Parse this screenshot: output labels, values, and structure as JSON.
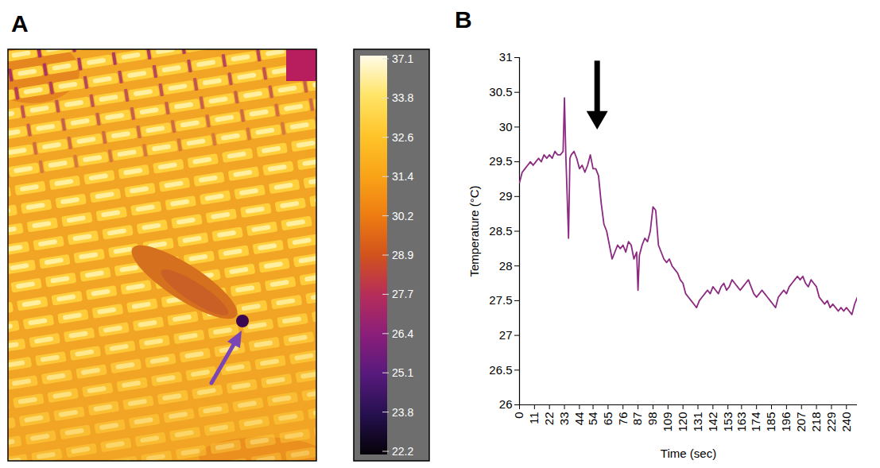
{
  "chart_data": [
    {
      "type": "image",
      "panel": "A",
      "colorbar": {
        "ticks": [
          37.1,
          33.8,
          32.6,
          31.4,
          30.2,
          28.9,
          27.7,
          26.4,
          25.1,
          23.8,
          22.2
        ],
        "colors": [
          "#fffbe8",
          "#ffe466",
          "#ffc42a",
          "#f9a418",
          "#ee7d12",
          "#d2521c",
          "#b52d5a",
          "#8a1e7a",
          "#561a7c",
          "#25104e",
          "#050208"
        ]
      }
    },
    {
      "type": "line",
      "panel": "B",
      "x_label": "Time (sec)",
      "y_label": "Temperature (°C)",
      "xlim": [
        0,
        248
      ],
      "ylim": [
        26,
        31
      ],
      "xticks": [
        0,
        11,
        22,
        33,
        44,
        54,
        65,
        76,
        87,
        98,
        109,
        120,
        131,
        142,
        153,
        163,
        174,
        185,
        196,
        207,
        218,
        229,
        240
      ],
      "yticks": [
        26,
        26.5,
        27,
        27.5,
        28,
        28.5,
        29,
        29.5,
        30,
        30.5,
        31
      ],
      "color": "#8c2a82",
      "arrow": {
        "x": 57,
        "y_start": 30.95,
        "y_end": 30.05
      },
      "x": [
        0,
        2,
        4,
        6,
        8,
        10,
        12,
        14,
        16,
        18,
        20,
        22,
        24,
        26,
        28,
        30,
        32,
        33,
        34,
        36,
        37,
        38,
        40,
        42,
        44,
        46,
        48,
        50,
        52,
        54,
        56,
        58,
        60,
        62,
        64,
        66,
        68,
        70,
        72,
        74,
        76,
        78,
        80,
        82,
        84,
        86,
        87,
        88,
        90,
        92,
        94,
        96,
        98,
        100,
        102,
        104,
        106,
        108,
        110,
        112,
        114,
        116,
        118,
        120,
        122,
        124,
        126,
        128,
        130,
        132,
        134,
        136,
        138,
        140,
        142,
        144,
        146,
        148,
        150,
        152,
        154,
        156,
        158,
        160,
        162,
        164,
        166,
        168,
        170,
        172,
        174,
        176,
        178,
        180,
        182,
        184,
        186,
        188,
        190,
        192,
        194,
        196,
        198,
        200,
        202,
        204,
        206,
        208,
        210,
        212,
        214,
        216,
        218,
        220,
        222,
        224,
        226,
        228,
        230,
        232,
        234,
        236,
        238,
        240,
        242,
        244,
        246,
        248
      ],
      "values": [
        29.2,
        29.35,
        29.4,
        29.45,
        29.5,
        29.45,
        29.5,
        29.55,
        29.5,
        29.6,
        29.55,
        29.6,
        29.55,
        29.65,
        29.6,
        29.6,
        29.65,
        30.42,
        29.6,
        28.4,
        29.55,
        29.6,
        29.65,
        29.55,
        29.4,
        29.45,
        29.35,
        29.45,
        29.6,
        29.4,
        29.4,
        29.3,
        28.9,
        28.6,
        28.5,
        28.3,
        28.1,
        28.2,
        28.3,
        28.25,
        28.3,
        28.2,
        28.35,
        28.3,
        28.1,
        28.2,
        27.65,
        28.15,
        28.3,
        28.4,
        28.35,
        28.5,
        28.85,
        28.8,
        28.3,
        28.2,
        28.1,
        28.05,
        28.1,
        28.0,
        27.95,
        27.9,
        27.8,
        27.75,
        27.6,
        27.55,
        27.5,
        27.45,
        27.4,
        27.5,
        27.55,
        27.6,
        27.65,
        27.6,
        27.7,
        27.65,
        27.6,
        27.7,
        27.75,
        27.65,
        27.7,
        27.8,
        27.75,
        27.7,
        27.65,
        27.7,
        27.75,
        27.8,
        27.7,
        27.6,
        27.55,
        27.6,
        27.65,
        27.6,
        27.55,
        27.5,
        27.45,
        27.4,
        27.55,
        27.6,
        27.65,
        27.6,
        27.7,
        27.75,
        27.8,
        27.85,
        27.8,
        27.85,
        27.75,
        27.7,
        27.8,
        27.75,
        27.7,
        27.55,
        27.5,
        27.45,
        27.5,
        27.4,
        27.45,
        27.4,
        27.35,
        27.4,
        27.35,
        27.4,
        27.35,
        27.3,
        27.45,
        27.55
      ]
    }
  ]
}
